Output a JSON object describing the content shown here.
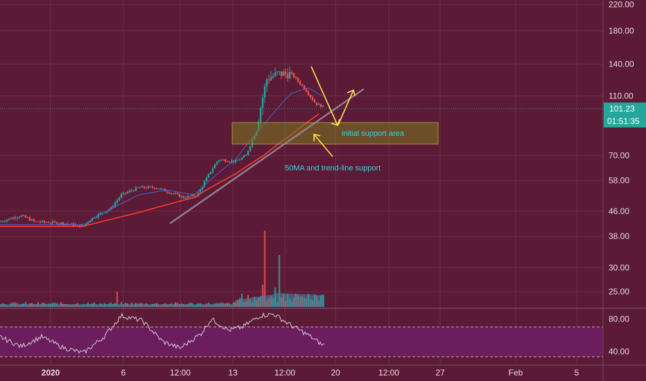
{
  "colors": {
    "background": "#5b1a36",
    "grid": "#6e2e49",
    "candle_up": "#26a69a",
    "candle_down": "#ef5350",
    "ma_fast": "#4a67d6",
    "ma_50": "#ff3b2f",
    "trend_line": "#9a8f96",
    "arrow": "#ffe64b",
    "support_zone": "#7a7a1e",
    "annotation_text": "#34d6e6",
    "rsi_line": "#d9cfd6",
    "rsi_band": "#6b1d5e"
  },
  "price_axis": {
    "scale": "log",
    "ticks": [
      "220.00",
      "180.00",
      "140.00",
      "110.00",
      "70.00",
      "58.00",
      "46.00",
      "38.00",
      "30.00",
      "25.00"
    ],
    "current_price": "101.23",
    "countdown": "01:51:35"
  },
  "rsi_axis": {
    "ticks": [
      "80.00",
      "40.00"
    ]
  },
  "time_axis": {
    "labels": [
      "2020",
      "6",
      "12:00",
      "13",
      "12:00",
      "20",
      "12:00",
      "27",
      "Feb",
      "5"
    ]
  },
  "annotations": {
    "support_area": "initial support area",
    "ma_support": "50MA and trend-line support"
  },
  "chart_data": {
    "type": "candlestick",
    "axis_scale": "log",
    "ylim": [
      23,
      225
    ],
    "x_labels": [
      "2020",
      "6",
      "12:00",
      "13",
      "12:00",
      "20",
      "12:00",
      "27",
      "Feb",
      "5"
    ],
    "price_anchors": [
      {
        "t": 0,
        "p": 42.5
      },
      {
        "t": 30,
        "p": 44.5
      },
      {
        "t": 50,
        "p": 42.5
      },
      {
        "t": 90,
        "p": 42
      },
      {
        "t": 120,
        "p": 41
      },
      {
        "t": 135,
        "p": 44
      },
      {
        "t": 160,
        "p": 47
      },
      {
        "t": 175,
        "p": 52
      },
      {
        "t": 200,
        "p": 55
      },
      {
        "t": 225,
        "p": 55
      },
      {
        "t": 245,
        "p": 53
      },
      {
        "t": 265,
        "p": 51
      },
      {
        "t": 285,
        "p": 52
      },
      {
        "t": 300,
        "p": 60
      },
      {
        "t": 315,
        "p": 68
      },
      {
        "t": 340,
        "p": 67
      },
      {
        "t": 355,
        "p": 70
      },
      {
        "t": 370,
        "p": 85
      },
      {
        "t": 385,
        "p": 125
      },
      {
        "t": 400,
        "p": 130
      },
      {
        "t": 420,
        "p": 130
      },
      {
        "t": 440,
        "p": 116
      },
      {
        "t": 455,
        "p": 104
      },
      {
        "t": 468,
        "p": 101
      }
    ],
    "ma50_anchors": [
      {
        "t": 0,
        "p": 41
      },
      {
        "t": 120,
        "p": 41
      },
      {
        "t": 200,
        "p": 45.5
      },
      {
        "t": 280,
        "p": 51
      },
      {
        "t": 340,
        "p": 61
      },
      {
        "t": 380,
        "p": 70
      },
      {
        "t": 420,
        "p": 82
      },
      {
        "t": 460,
        "p": 96
      }
    ],
    "ma_fast_anchors": [
      {
        "t": 0,
        "p": 41.5
      },
      {
        "t": 120,
        "p": 41.5
      },
      {
        "t": 200,
        "p": 52
      },
      {
        "t": 240,
        "p": 54
      },
      {
        "t": 280,
        "p": 52
      },
      {
        "t": 340,
        "p": 68
      },
      {
        "t": 380,
        "p": 88
      },
      {
        "t": 420,
        "p": 112
      },
      {
        "t": 445,
        "p": 117
      },
      {
        "t": 465,
        "p": 110
      }
    ],
    "volume_spikes": [
      {
        "t": 383,
        "v": 110
      },
      {
        "t": 402,
        "v": 75
      },
      {
        "t": 378,
        "v": 32
      },
      {
        "t": 396,
        "v": 28
      },
      {
        "t": 170,
        "v": 22
      }
    ],
    "rsi_anchors": [
      {
        "t": 0,
        "v": 58
      },
      {
        "t": 30,
        "v": 46
      },
      {
        "t": 60,
        "v": 58
      },
      {
        "t": 90,
        "v": 45
      },
      {
        "t": 120,
        "v": 38
      },
      {
        "t": 150,
        "v": 58
      },
      {
        "t": 175,
        "v": 84
      },
      {
        "t": 205,
        "v": 78
      },
      {
        "t": 235,
        "v": 52
      },
      {
        "t": 260,
        "v": 44
      },
      {
        "t": 290,
        "v": 62
      },
      {
        "t": 305,
        "v": 80
      },
      {
        "t": 330,
        "v": 66
      },
      {
        "t": 350,
        "v": 70
      },
      {
        "t": 375,
        "v": 84
      },
      {
        "t": 395,
        "v": 86
      },
      {
        "t": 420,
        "v": 72
      },
      {
        "t": 445,
        "v": 60
      },
      {
        "t": 465,
        "v": 48
      }
    ],
    "rsi_ylim": [
      30,
      88
    ],
    "rsi_band": [
      30,
      70
    ]
  }
}
